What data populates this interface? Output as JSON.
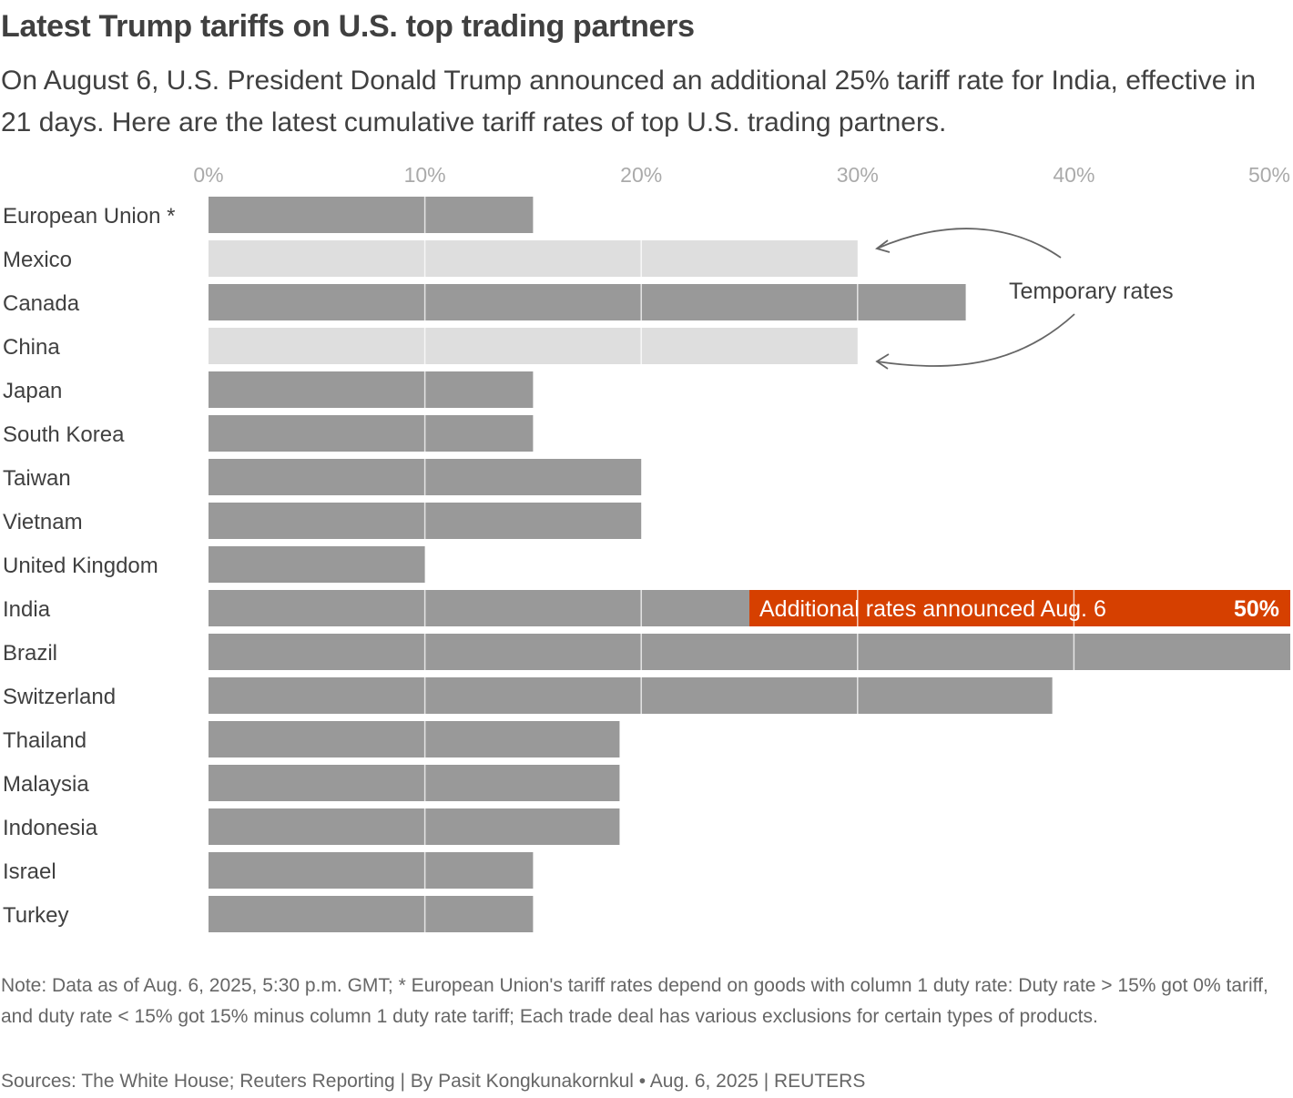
{
  "header": {
    "title": "Latest Trump tariffs on U.S. top trading partners",
    "subtitle": "On August 6, U.S. President Donald Trump announced an additional 25% tariff rate for India, effective in 21 days. Here are the latest cumulative tariff rates of top U.S. trading partners."
  },
  "chart_data": {
    "type": "bar",
    "orientation": "horizontal",
    "title": "Latest Trump tariffs on U.S. top trading partners",
    "xlim": [
      0,
      50
    ],
    "x_ticks": [
      "0%",
      "10%",
      "20%",
      "30%",
      "40%",
      "50%"
    ],
    "grid": true,
    "categories": [
      "European Union *",
      "Mexico",
      "Canada",
      "China",
      "Japan",
      "South Korea",
      "Taiwan",
      "Vietnam",
      "United Kingdom",
      "India",
      "Brazil",
      "Switzerland",
      "Thailand",
      "Malaysia",
      "Indonesia",
      "Israel",
      "Turkey"
    ],
    "values": [
      15,
      30,
      35,
      30,
      15,
      15,
      20,
      20,
      10,
      25,
      50,
      39,
      19,
      19,
      19,
      15,
      15
    ],
    "temporary": [
      false,
      true,
      false,
      true,
      false,
      false,
      false,
      false,
      false,
      false,
      false,
      false,
      false,
      false,
      false,
      false,
      false
    ],
    "additional": {
      "category": "India",
      "from": 25,
      "to": 50,
      "label": "Additional rates announced Aug. 6",
      "total_label": "50%"
    },
    "annotation": "Temporary rates",
    "colors": {
      "bar": "#999999",
      "temporary": "#dedede",
      "additional": "#d64000",
      "grid": "#ffffff"
    }
  },
  "footer": {
    "note": "Note: Data as of Aug. 6, 2025, 5:30 p.m. GMT; * European Union's tariff rates depend on goods with column 1 duty rate: Duty rate > 15% got 0% tariff, and duty rate < 15% got 15% minus column 1 duty rate tariff; Each trade deal has various exclusions for certain types of products.",
    "source": "Sources: The White House; Reuters Reporting | By Pasit Kongkunakornkul • Aug. 6, 2025 | REUTERS"
  }
}
